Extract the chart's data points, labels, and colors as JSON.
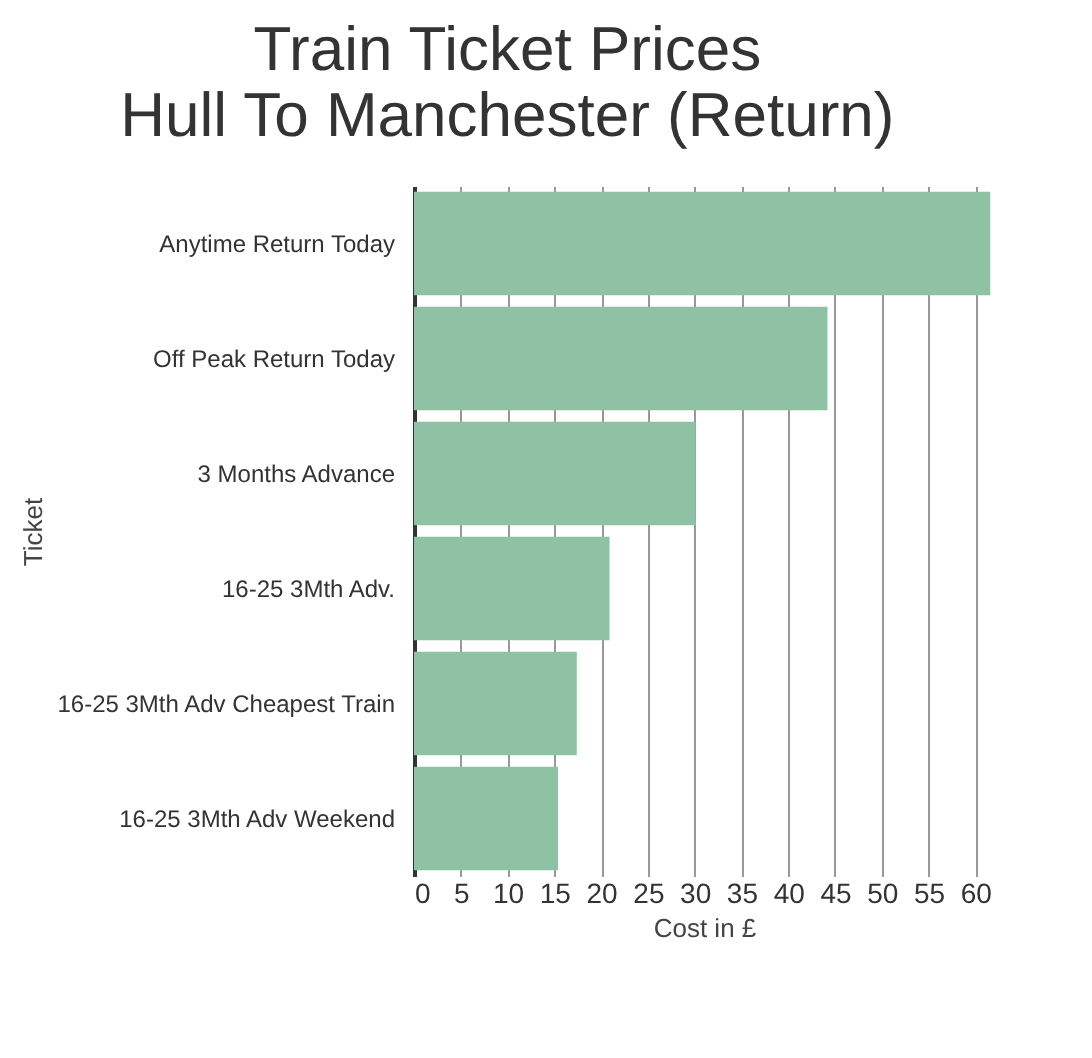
{
  "chart_data": {
    "type": "bar",
    "orientation": "horizontal",
    "title": "Train Ticket Prices\nHull To Manchester (Return)",
    "xlabel": "Cost in £",
    "ylabel": "Ticket",
    "categories": [
      "Anytime Return Today",
      "Off Peak Return Today",
      "3 Months Advance",
      "16-25 3Mth Adv.",
      "16-25 3Mth Adv Cheapest Train",
      "16-25 3Mth Adv Weekend"
    ],
    "values": [
      61.6,
      44.2,
      30.1,
      20.9,
      17.4,
      15.4
    ],
    "color": "#8fc1a5",
    "xlim": [
      0,
      62
    ],
    "xticks": [
      0,
      5,
      10,
      15,
      20,
      25,
      30,
      35,
      40,
      45,
      50,
      55,
      60
    ],
    "grid": "x"
  }
}
